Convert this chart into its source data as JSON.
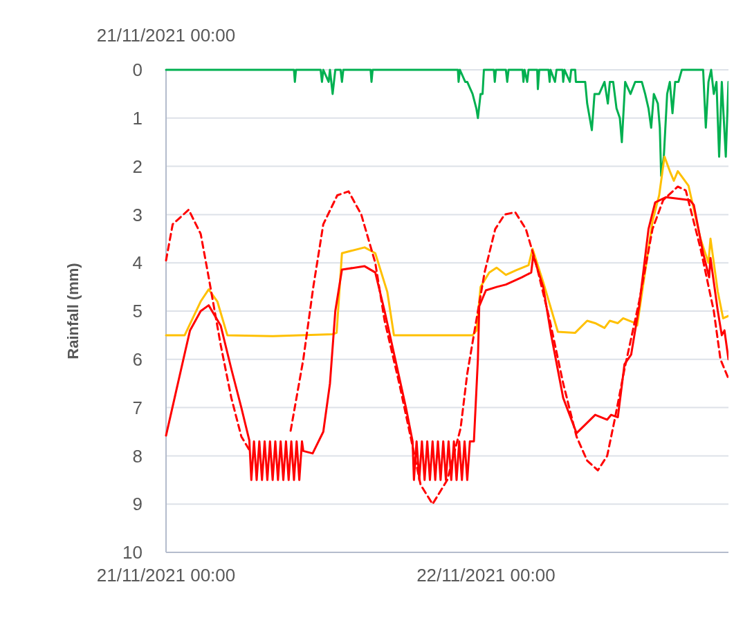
{
  "chart_data": {
    "type": "line",
    "ylabel": "Rainfall (mm)",
    "annotations": [
      "21/11/2021 00:00"
    ],
    "xlim": [
      "2021-11-21T00:00",
      "2021-11-22T18:12"
    ],
    "xticks": [
      {
        "value": "2021-11-21T00:00",
        "label": "21/11/2021 00:00"
      },
      {
        "value": "2021-11-22T00:00",
        "label": "22/11/2021 00:00"
      }
    ],
    "ylim": [
      10,
      0
    ],
    "yticks": [
      0,
      1,
      2,
      3,
      4,
      5,
      6,
      7,
      8,
      9,
      10
    ],
    "grid": "y",
    "series": [
      {
        "color": "#00b050",
        "line_style": "solid",
        "x": [
          "2021-11-21T00:00",
          "2021-11-21T09:36",
          "2021-11-21T09:40",
          "2021-11-21T09:45",
          "2021-11-21T11:36",
          "2021-11-21T11:42",
          "2021-11-21T11:48",
          "2021-11-21T12:12",
          "2021-11-21T12:18",
          "2021-11-21T12:30",
          "2021-11-21T12:42",
          "2021-11-21T13:06",
          "2021-11-21T13:12",
          "2021-11-21T13:18",
          "2021-11-21T15:21",
          "2021-11-21T15:25",
          "2021-11-21T15:30",
          "2021-11-21T21:54",
          "2021-11-21T21:57",
          "2021-11-21T22:03",
          "2021-11-21T22:27",
          "2021-11-21T22:36",
          "2021-11-21T23:00",
          "2021-11-21T23:17",
          "2021-11-21T23:24",
          "2021-11-21T23:36",
          "2021-11-21T23:45",
          "2021-11-21T23:51",
          "2021-11-22T00:36",
          "2021-11-22T00:40",
          "2021-11-22T00:45",
          "2021-11-22T01:30",
          "2021-11-22T01:36",
          "2021-11-22T01:42",
          "2021-11-22T02:45",
          "2021-11-22T02:49",
          "2021-11-22T02:54",
          "2021-11-22T03:06",
          "2021-11-22T03:12",
          "2021-11-22T03:51",
          "2021-11-22T03:54",
          "2021-11-22T04:00",
          "2021-11-22T04:42",
          "2021-11-22T04:47",
          "2021-11-22T04:51",
          "2021-11-22T05:11",
          "2021-11-22T05:18",
          "2021-11-22T05:45",
          "2021-11-22T05:48",
          "2021-11-22T05:54",
          "2021-11-22T06:18",
          "2021-11-22T06:24",
          "2021-11-22T06:42",
          "2021-11-22T06:45",
          "2021-11-22T07:27",
          "2021-11-22T07:36",
          "2021-11-22T07:57",
          "2021-11-22T08:09",
          "2021-11-22T08:30",
          "2021-11-22T08:54",
          "2021-11-22T09:09",
          "2021-11-22T09:18",
          "2021-11-22T09:33",
          "2021-11-22T09:48",
          "2021-11-22T10:03",
          "2021-11-22T10:12",
          "2021-11-22T10:27",
          "2021-11-22T10:51",
          "2021-11-22T11:12",
          "2021-11-22T11:42",
          "2021-11-22T11:57",
          "2021-11-22T12:12",
          "2021-11-22T12:24",
          "2021-11-22T12:36",
          "2021-11-22T12:54",
          "2021-11-22T13:03",
          "2021-11-22T13:09",
          "2021-11-22T13:21",
          "2021-11-22T13:36",
          "2021-11-22T13:48",
          "2021-11-22T14:00",
          "2021-11-22T14:12",
          "2021-11-22T14:27",
          "2021-11-22T14:42",
          "2021-11-22T16:18",
          "2021-11-22T16:30",
          "2021-11-22T16:42",
          "2021-11-22T16:54",
          "2021-11-22T17:06",
          "2021-11-22T17:18",
          "2021-11-22T17:30",
          "2021-11-22T17:42",
          "2021-11-22T18:00",
          "2021-11-22T18:12"
        ],
        "values": [
          0,
          0,
          0.25,
          0,
          0,
          0.25,
          0,
          0.25,
          0,
          0.5,
          0,
          0,
          0.25,
          0,
          0,
          0.25,
          0,
          0,
          0.25,
          0,
          0.25,
          0.25,
          0.5,
          0.8,
          1.0,
          0.5,
          0.5,
          0,
          0,
          0.25,
          0,
          0,
          0.25,
          0,
          0,
          0.25,
          0,
          0.25,
          0,
          0,
          0.4,
          0,
          0,
          0.25,
          0,
          0.25,
          0,
          0,
          0.25,
          0,
          0.25,
          0,
          0,
          0.25,
          0.25,
          0.7,
          1.25,
          0.5,
          0.5,
          0.25,
          0.7,
          0.25,
          0.25,
          0.8,
          1.0,
          1.5,
          0.25,
          0.5,
          0.25,
          0.25,
          0.5,
          0.8,
          1.2,
          0.5,
          0.7,
          1.2,
          2.2,
          1.8,
          0.5,
          0.25,
          0.9,
          0.25,
          0.25,
          0,
          0,
          1.2,
          0.25,
          0,
          0.5,
          0.25,
          1.8,
          0.25,
          1.8,
          0.25
        ]
      },
      {
        "color": "#ffc000",
        "line_style": "solid",
        "x": [
          "2021-11-21T00:00",
          "2021-11-21T01:24",
          "2021-11-21T02:36",
          "2021-11-21T03:12",
          "2021-11-21T03:51",
          "2021-11-21T04:36",
          "2021-11-21T08:00",
          "2021-11-21T12:30",
          "2021-11-21T12:48",
          "2021-11-21T13:12",
          "2021-11-21T13:54",
          "2021-11-21T14:54",
          "2021-11-21T15:42",
          "2021-11-21T16:36",
          "2021-11-21T17:06",
          "2021-11-21T23:00",
          "2021-11-21T23:18",
          "2021-11-21T23:36",
          "2021-11-22T00:15",
          "2021-11-22T00:48",
          "2021-11-22T01:30",
          "2021-11-22T02:18",
          "2021-11-22T03:12",
          "2021-11-22T03:30",
          "2021-11-22T04:18",
          "2021-11-22T05:24",
          "2021-11-22T06:42",
          "2021-11-22T07:36",
          "2021-11-22T08:12",
          "2021-11-22T08:54",
          "2021-11-22T09:18",
          "2021-11-22T09:54",
          "2021-11-22T10:18",
          "2021-11-22T11:12",
          "2021-11-22T11:21",
          "2021-11-22T12:30",
          "2021-11-22T13:00",
          "2021-11-22T13:24",
          "2021-11-22T13:48",
          "2021-11-22T14:06",
          "2021-11-22T14:24",
          "2021-11-22T15:12",
          "2021-11-22T16:06",
          "2021-11-22T16:42",
          "2021-11-22T16:51",
          "2021-11-22T17:24",
          "2021-11-22T17:48",
          "2021-11-22T18:12"
        ],
        "values": [
          5.5,
          5.5,
          4.8,
          4.55,
          4.8,
          5.5,
          5.52,
          5.48,
          5.45,
          3.8,
          3.75,
          3.68,
          3.8,
          4.6,
          5.5,
          5.5,
          5.4,
          4.5,
          4.2,
          4.1,
          4.25,
          4.15,
          4.05,
          3.71,
          4.4,
          5.43,
          5.45,
          5.2,
          5.25,
          5.35,
          5.2,
          5.25,
          5.15,
          5.25,
          5.3,
          3.14,
          2.6,
          1.8,
          2.1,
          2.3,
          2.1,
          2.4,
          3.5,
          4.0,
          3.5,
          4.6,
          5.15,
          5.1
        ]
      },
      {
        "color": "#ff0000",
        "line_style": "solid",
        "x": [
          "2021-11-21T00:00",
          "2021-11-21T01:18",
          "2021-11-21T01:48",
          "2021-11-21T02:36",
          "2021-11-21T03:12",
          "2021-11-21T04:06",
          "2021-11-21T04:54",
          "2021-11-21T05:39",
          "2021-11-21T06:15",
          "2021-11-21T06:24",
          "2021-11-21T06:36",
          "2021-11-21T06:48",
          "2021-11-21T07:00",
          "2021-11-21T07:12",
          "2021-11-21T07:24",
          "2021-11-21T07:36",
          "2021-11-21T07:48",
          "2021-11-21T08:00",
          "2021-11-21T08:12",
          "2021-11-21T08:24",
          "2021-11-21T08:36",
          "2021-11-21T08:48",
          "2021-11-21T09:00",
          "2021-11-21T09:12",
          "2021-11-21T09:24",
          "2021-11-21T09:36",
          "2021-11-21T09:48",
          "2021-11-21T10:00",
          "2021-11-21T10:12",
          "2021-11-21T10:18",
          "2021-11-21T11:00",
          "2021-11-21T11:48",
          "2021-11-21T12:18",
          "2021-11-21T12:42",
          "2021-11-21T13:12",
          "2021-11-21T14:54",
          "2021-11-21T15:42",
          "2021-11-21T16:24",
          "2021-11-21T17:12",
          "2021-11-21T18:00",
          "2021-11-21T18:30",
          "2021-11-21T18:36",
          "2021-11-21T18:48",
          "2021-11-21T19:00",
          "2021-11-21T19:12",
          "2021-11-21T19:24",
          "2021-11-21T19:36",
          "2021-11-21T19:48",
          "2021-11-21T20:00",
          "2021-11-21T20:12",
          "2021-11-21T20:24",
          "2021-11-21T20:36",
          "2021-11-21T20:48",
          "2021-11-21T21:00",
          "2021-11-21T21:12",
          "2021-11-21T21:24",
          "2021-11-21T21:36",
          "2021-11-21T21:48",
          "2021-11-21T22:00",
          "2021-11-21T22:12",
          "2021-11-21T22:24",
          "2021-11-21T22:36",
          "2021-11-21T22:48",
          "2021-11-21T23:06",
          "2021-11-21T23:24",
          "2021-11-21T23:30",
          "2021-11-22T00:00",
          "2021-11-22T00:48",
          "2021-11-22T01:30",
          "2021-11-22T02:42",
          "2021-11-22T03:24",
          "2021-11-22T03:33",
          "2021-11-22T04:18",
          "2021-11-22T04:54",
          "2021-11-22T05:48",
          "2021-11-22T06:48",
          "2021-11-22T08:12",
          "2021-11-22T09:06",
          "2021-11-22T09:24",
          "2021-11-22T09:54",
          "2021-11-22T10:24",
          "2021-11-22T10:54",
          "2021-11-22T11:30",
          "2021-11-22T12:12",
          "2021-11-22T12:42",
          "2021-11-22T13:30",
          "2021-11-22T15:18",
          "2021-11-22T15:36",
          "2021-11-22T16:18",
          "2021-11-22T16:45",
          "2021-11-22T16:51",
          "2021-11-22T17:24",
          "2021-11-22T17:42",
          "2021-11-22T17:54",
          "2021-11-22T18:12"
        ],
        "values": [
          7.58,
          6.0,
          5.4,
          5.0,
          4.88,
          5.3,
          6.2,
          7.0,
          7.68,
          8.5,
          7.7,
          8.5,
          7.7,
          8.5,
          7.7,
          8.5,
          7.7,
          8.5,
          7.7,
          8.5,
          7.7,
          8.5,
          7.7,
          8.5,
          7.7,
          8.5,
          7.7,
          8.5,
          7.7,
          7.9,
          7.95,
          7.5,
          6.5,
          5.0,
          4.14,
          4.07,
          4.2,
          5.0,
          6.0,
          7.0,
          7.7,
          8.5,
          7.7,
          8.5,
          7.7,
          8.5,
          7.7,
          8.5,
          7.7,
          8.5,
          7.7,
          8.5,
          7.7,
          8.5,
          7.7,
          8.5,
          7.7,
          8.5,
          7.7,
          8.5,
          7.7,
          8.5,
          7.7,
          7.7,
          6.0,
          4.9,
          4.57,
          4.5,
          4.45,
          4.3,
          4.2,
          3.85,
          4.5,
          5.5,
          6.8,
          7.53,
          7.15,
          7.25,
          7.15,
          7.2,
          6.1,
          5.9,
          4.9,
          3.3,
          2.75,
          2.64,
          2.7,
          2.8,
          3.8,
          4.3,
          3.9,
          5.0,
          5.5,
          5.4,
          6.0
        ]
      },
      {
        "color": "#ff0000",
        "line_style": "dashed",
        "x": [
          "2021-11-21T00:00",
          "2021-11-21T00:30",
          "2021-11-21T01:42",
          "2021-11-21T02:36",
          "2021-11-21T03:12",
          "2021-11-21T04:06",
          "2021-11-21T04:54",
          "2021-11-21T05:39",
          "2021-11-21T06:18",
          "2021-11-21T07:48",
          "2021-11-21T09:21",
          "2021-11-21T10:18",
          "2021-11-21T11:03",
          "2021-11-21T11:48",
          "2021-11-21T12:51",
          "2021-11-21T13:42",
          "2021-11-21T14:39",
          "2021-11-21T15:42",
          "2021-11-21T16:24",
          "2021-11-21T17:30",
          "2021-11-21T18:30",
          "2021-11-21T19:06",
          "2021-11-21T20:00",
          "2021-11-21T21:06",
          "2021-11-21T22:06",
          "2021-11-21T22:36",
          "2021-11-21T23:24",
          "2021-11-21T23:54",
          "2021-11-22T00:42",
          "2021-11-22T01:24",
          "2021-11-22T02:12",
          "2021-11-22T03:00",
          "2021-11-22T03:45",
          "2021-11-22T04:48",
          "2021-11-22T05:48",
          "2021-11-22T06:48",
          "2021-11-22T07:36",
          "2021-11-22T08:24",
          "2021-11-22T09:06",
          "2021-11-22T09:42",
          "2021-11-22T10:24",
          "2021-11-22T11:30",
          "2021-11-22T12:30",
          "2021-11-22T13:18",
          "2021-11-22T14:24",
          "2021-11-22T15:00",
          "2021-11-22T16:06",
          "2021-11-22T17:06",
          "2021-11-22T17:36",
          "2021-11-22T18:12"
        ],
        "values": [
          3.95,
          3.2,
          2.9,
          3.4,
          4.3,
          5.7,
          6.8,
          7.6,
          7.9,
          null,
          7.48,
          6.0,
          4.5,
          3.2,
          2.6,
          2.52,
          3.0,
          4.0,
          5.2,
          6.5,
          7.8,
          8.6,
          9.0,
          8.5,
          7.43,
          6.3,
          5.0,
          4.2,
          3.3,
          3.0,
          2.95,
          3.3,
          4.0,
          5.2,
          6.5,
          7.6,
          8.1,
          8.3,
          8.0,
          7.2,
          6.2,
          4.8,
          3.3,
          2.7,
          2.42,
          2.5,
          3.7,
          5.0,
          6.0,
          6.4
        ]
      }
    ]
  }
}
